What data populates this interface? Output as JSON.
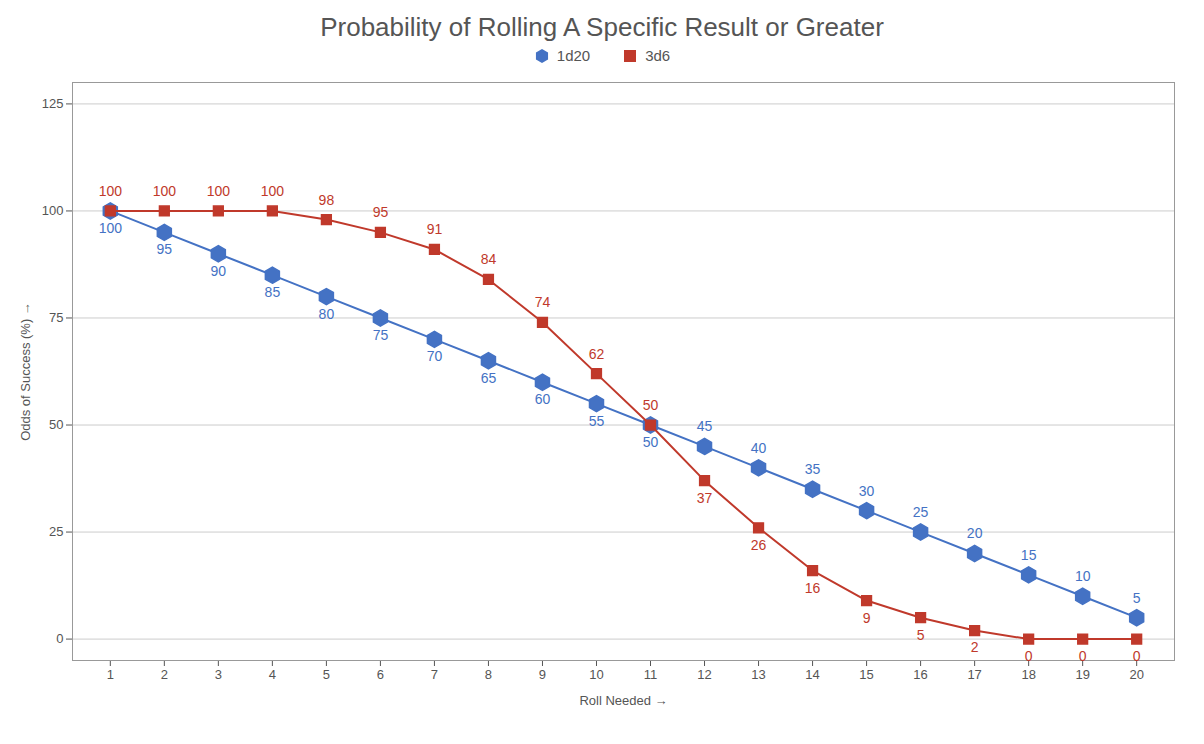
{
  "chart_data": {
    "type": "line",
    "title": "Probability of Rolling A Specific Result or Greater",
    "x_label": "Roll Needed",
    "y_label": "Odds of Success (%)",
    "x": [
      1,
      2,
      3,
      4,
      5,
      6,
      7,
      8,
      9,
      10,
      11,
      12,
      13,
      14,
      15,
      16,
      17,
      18,
      19,
      20
    ],
    "series": [
      {
        "name": "1d20",
        "color": "#4472C4",
        "marker": "hexagon",
        "values": [
          100,
          95,
          90,
          85,
          80,
          75,
          70,
          65,
          60,
          55,
          50,
          45,
          40,
          35,
          30,
          25,
          20,
          15,
          10,
          5
        ]
      },
      {
        "name": "3d6",
        "color": "#C0392B",
        "marker": "square",
        "values": [
          100,
          100,
          100,
          100,
          98,
          95,
          91,
          84,
          74,
          62,
          50,
          37,
          26,
          16,
          9,
          5,
          2,
          0,
          0,
          0
        ]
      }
    ],
    "xlim": [
      0.3,
      20.7
    ],
    "xticks": [
      1,
      2,
      3,
      4,
      5,
      6,
      7,
      8,
      9,
      10,
      11,
      12,
      13,
      14,
      15,
      16,
      17,
      18,
      19,
      20
    ],
    "ylim": [
      -5,
      130
    ],
    "yticks": [
      0,
      25,
      50,
      75,
      100,
      125
    ],
    "grid": "y",
    "legend": "top",
    "data_labels": true
  }
}
